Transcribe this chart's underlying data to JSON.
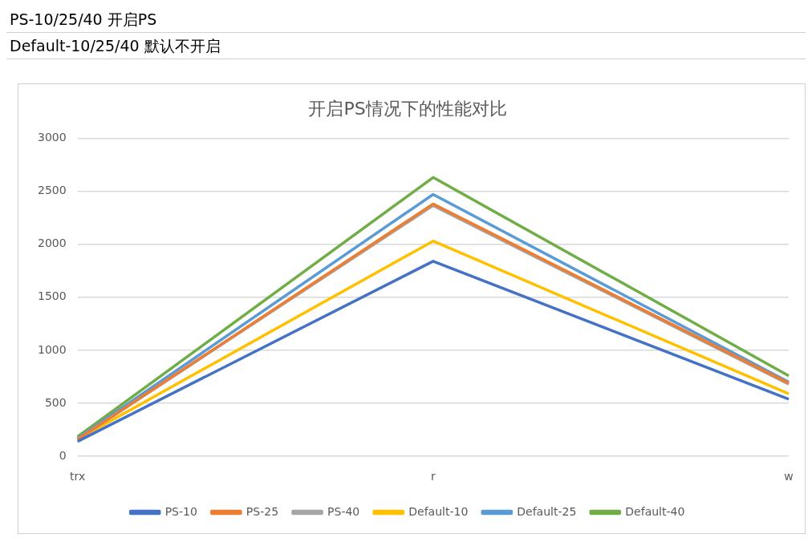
{
  "chart_data": {
    "type": "line",
    "title": "开启PS情况下的性能对比",
    "categories": [
      "trx",
      "r",
      "w"
    ],
    "series": [
      {
        "name": "PS-10",
        "color": "#4472c4",
        "values": [
          140,
          1840,
          540
        ]
      },
      {
        "name": "PS-25",
        "color": "#ed7d31",
        "values": [
          160,
          2380,
          690
        ]
      },
      {
        "name": "PS-40",
        "color": "#a5a5a5",
        "values": [
          160,
          2365,
          680
        ]
      },
      {
        "name": "Default-10",
        "color": "#ffc000",
        "values": [
          160,
          2030,
          590
        ]
      },
      {
        "name": "Default-25",
        "color": "#5b9bd5",
        "values": [
          170,
          2470,
          700
        ]
      },
      {
        "name": "Default-40",
        "color": "#70ad47",
        "values": [
          185,
          2630,
          760
        ]
      }
    ],
    "ylim": [
      0,
      3000
    ],
    "yticks": [
      0,
      500,
      1000,
      1500,
      2000,
      2500,
      3000
    ],
    "grid": "y",
    "legend": "bottom",
    "marker": "none",
    "line_style": "solid",
    "annotations": [
      "PS-10/25/40 开启PS",
      "Default-10/25/40 默认不开启"
    ]
  }
}
